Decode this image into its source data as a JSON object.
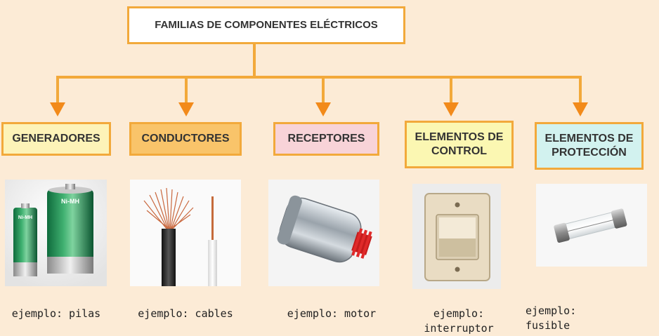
{
  "title": "FAMILIAS DE COMPONENTES ELÉCTRICOS",
  "families": [
    {
      "label": "GENERADORES",
      "caption": "ejemplo: pilas",
      "color": "#fdf3b8"
    },
    {
      "label": "CONDUCTORES",
      "caption": "ejemplo: cables",
      "color": "#f9c46a"
    },
    {
      "label": "RECEPTORES",
      "caption": "ejemplo: motor",
      "color": "#f8d3d8"
    },
    {
      "label": "ELEMENTOS DE CONTROL",
      "caption": "ejemplo: interruptor",
      "color": "#fbf7b2"
    },
    {
      "label": "ELEMENTOS DE PROTECCIÓN",
      "caption": "ejemplo: fusible",
      "color": "#d2f2ef"
    }
  ],
  "battery_labels": {
    "small": "Ni-MH",
    "large": "Ni-MH"
  },
  "accent_color": "#f2a93b",
  "arrow_color": "#f28a1a"
}
